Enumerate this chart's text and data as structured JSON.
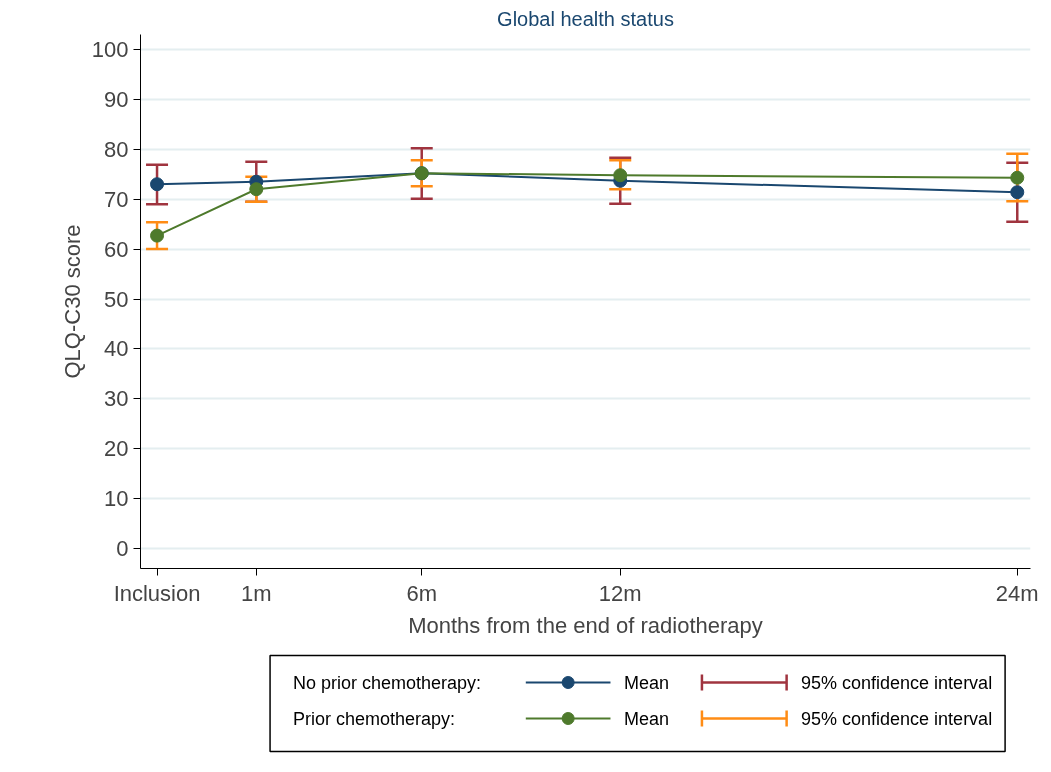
{
  "chart_data": {
    "type": "line",
    "title": "Global health status",
    "xlabel": "Months from the end of radiotherapy",
    "ylabel": "QLQ-C30 score",
    "x": [
      -2,
      1,
      6,
      12,
      24
    ],
    "xlim": [
      -2.5,
      24.4
    ],
    "xticks": [
      {
        "value": -2,
        "label": "Inclusion"
      },
      {
        "value": 1,
        "label": "1m"
      },
      {
        "value": 6,
        "label": "6m"
      },
      {
        "value": 12,
        "label": "12m"
      },
      {
        "value": 24,
        "label": "24m"
      }
    ],
    "ylim": [
      -4,
      103
    ],
    "yticks": [
      0,
      10,
      20,
      30,
      40,
      50,
      60,
      70,
      80,
      90,
      100
    ],
    "annotations": [
      "No prior chemotherapy:",
      "95% confidence interval",
      "Prior chemotherapy:",
      "95% confidence interval"
    ],
    "grid": "y",
    "marker": "circle",
    "line_style": "solid",
    "legend": "bottom",
    "series": [
      {
        "name": "Mean",
        "color": "#1a476f",
        "values": [
          73.0,
          73.5,
          75.2,
          73.7,
          71.4
        ],
        "errors": [
          [
            69.0,
            76.9
          ],
          [
            69.5,
            77.5
          ],
          [
            70.1,
            80.2
          ],
          [
            69.1,
            78.3
          ],
          [
            65.5,
            77.3
          ]
        ]
      },
      {
        "name": "Mean",
        "color": "#4e7a2c",
        "values": [
          62.7,
          72.0,
          75.2,
          74.8,
          74.3
        ],
        "errors": [
          [
            60.0,
            65.4
          ],
          [
            69.5,
            74.5
          ],
          [
            72.6,
            77.8
          ],
          [
            72.0,
            77.8
          ],
          [
            69.6,
            79.1
          ]
        ]
      }
    ]
  }
}
